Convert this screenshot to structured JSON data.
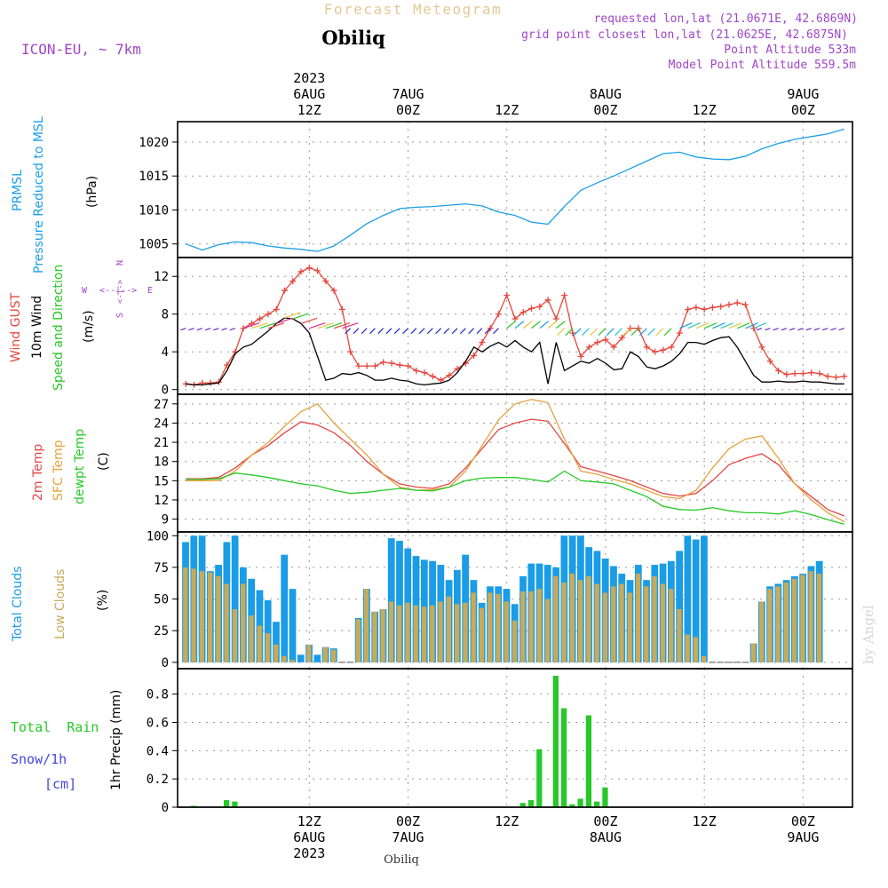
{
  "header": {
    "title": "Forecast Meteogram",
    "location": "Obiliq",
    "model": "ICON-EU, ~ 7km",
    "requested": "requested lon,lat (21.0671E, 42.6869N)",
    "grid_point": "grid point closest lon,lat (21.0625E, 42.6875N)",
    "point_altitude": "Point Altitude 533m",
    "model_altitude": "Model Point Altitude 559.5m",
    "footer_location": "Obiliq",
    "watermark": "by Angel"
  },
  "time_axis": {
    "top_labels": [
      {
        "t": 0,
        "lines": [
          "2023",
          "6AUG",
          "12Z"
        ]
      },
      {
        "t": 12,
        "lines": [
          "7AUG",
          "00Z"
        ]
      },
      {
        "t": 24,
        "lines": [
          "12Z"
        ]
      },
      {
        "t": 36,
        "lines": [
          "8AUG",
          "00Z"
        ]
      },
      {
        "t": 48,
        "lines": [
          "12Z"
        ]
      },
      {
        "t": 60,
        "lines": [
          "9AUG",
          "00Z"
        ]
      }
    ],
    "bottom_labels": [
      {
        "t": 0,
        "lines": [
          "12Z",
          "6AUG",
          "2023"
        ]
      },
      {
        "t": 12,
        "lines": [
          "00Z",
          "7AUG"
        ]
      },
      {
        "t": 24,
        "lines": [
          "12Z"
        ]
      },
      {
        "t": 36,
        "lines": [
          "00Z",
          "8AUG"
        ]
      },
      {
        "t": 48,
        "lines": [
          "12Z"
        ]
      },
      {
        "t": 60,
        "lines": [
          "00Z",
          "9AUG"
        ]
      }
    ]
  },
  "panels": {
    "pressure": {
      "label1": "PRMSL",
      "label2": "Pressure Reduced to MSL",
      "unit": "(hPa)"
    },
    "wind": {
      "label_gust": "Wind GUST",
      "label_wind": "10m Wind",
      "label_dir": "Speed and Direction",
      "unit": "(m/s)",
      "compass": {
        "n": "N",
        "s": "S",
        "e": "E",
        "w": "W"
      }
    },
    "temp": {
      "label_t2m": "2m Temp",
      "label_sfc": "SFC Temp",
      "label_dew": "dewpt Temp",
      "unit": "(C)"
    },
    "clouds": {
      "label_total": "Total Clouds",
      "label_low": "Low Clouds",
      "unit": "(%)"
    },
    "precip": {
      "label_rain": "Total  Rain",
      "label_snow": "Snow/1h",
      "label_cm": "[cm]",
      "label_axis": "1hr Precip (mm)"
    }
  },
  "colors": {
    "pressure": "#1aa0e6",
    "gust": "#e6463c",
    "wind": "#000000",
    "t2m": "#e64646",
    "sfc": "#e6a23c",
    "dew": "#28c828",
    "total_clouds": "#1a9ce6",
    "low_clouds": "#c8aa5a",
    "rain": "#28c828",
    "title": "#e6c896",
    "meta": "#a046c8"
  },
  "chart_data": [
    {
      "type": "line",
      "name": "pressure",
      "x_unit": "hours from 6AUG 12Z",
      "ylim": [
        1003,
        1023
      ],
      "yticks": [
        1005,
        1010,
        1015,
        1020
      ],
      "series": [
        {
          "name": "PRMSL",
          "x": [
            -15,
            -13,
            -11,
            -9,
            -7,
            -5,
            -3,
            -1,
            1,
            3,
            5,
            7,
            9,
            11,
            13,
            15,
            17,
            19,
            21,
            23,
            25,
            27,
            29,
            31,
            33,
            35,
            37,
            39,
            41,
            43,
            45,
            47,
            49,
            51,
            53,
            55,
            57,
            59,
            61,
            63,
            65
          ],
          "y": [
            1005.0,
            1004.1,
            1004.9,
            1005.3,
            1005.2,
            1004.7,
            1004.4,
            1004.2,
            1003.9,
            1004.7,
            1006.3,
            1008.0,
            1009.2,
            1010.2,
            1010.4,
            1010.5,
            1010.7,
            1010.9,
            1010.6,
            1009.7,
            1009.2,
            1008.2,
            1007.9,
            1010.5,
            1012.9,
            1014.0,
            1015.0,
            1016.1,
            1017.2,
            1018.3,
            1018.5,
            1017.8,
            1017.5,
            1017.4,
            1017.9,
            1019.0,
            1019.8,
            1020.4,
            1020.8,
            1021.2,
            1021.9
          ]
        }
      ]
    },
    {
      "type": "line",
      "name": "wind",
      "ylim": [
        -0.5,
        14
      ],
      "yticks": [
        0,
        4,
        8,
        12
      ],
      "series": [
        {
          "name": "Wind GUST",
          "x": [
            -15,
            -14,
            -13,
            -12,
            -11,
            -10,
            -9,
            -8,
            -7,
            -6,
            -5,
            -4,
            -3,
            -2,
            -1,
            0,
            1,
            2,
            3,
            4,
            5,
            6,
            7,
            8,
            9,
            10,
            11,
            12,
            13,
            14,
            15,
            16,
            17,
            18,
            19,
            20,
            21,
            22,
            23,
            24,
            25,
            26,
            27,
            28,
            29,
            30,
            31,
            32,
            33,
            34,
            35,
            36,
            37,
            38,
            39,
            40,
            41,
            42,
            43,
            44,
            45,
            46,
            47,
            48,
            49,
            50,
            51,
            52,
            53,
            54,
            55,
            56,
            57,
            58,
            59,
            60,
            61,
            62,
            63,
            64,
            65
          ],
          "y": [
            0.6,
            0.5,
            0.7,
            0.7,
            0.8,
            2.6,
            4.0,
            6.5,
            7.0,
            7.5,
            8.0,
            8.5,
            10.5,
            11.5,
            12.5,
            12.9,
            12.6,
            11.5,
            10.5,
            8.5,
            4.0,
            2.5,
            2.5,
            2.5,
            2.9,
            2.8,
            2.6,
            2.5,
            2.0,
            1.8,
            1.4,
            1.0,
            1.5,
            2.2,
            2.8,
            3.6,
            5.0,
            6.5,
            8.0,
            10.0,
            7.5,
            8.2,
            8.6,
            8.8,
            9.5,
            7.5,
            10.0,
            6.0,
            3.5,
            4.5,
            5.0,
            5.3,
            4.5,
            5.5,
            6.5,
            6.5,
            4.5,
            4.0,
            4.2,
            4.5,
            6.0,
            8.5,
            8.7,
            8.5,
            8.7,
            8.8,
            9.0,
            9.2,
            9.0,
            6.5,
            4.5,
            3.0,
            2.0,
            1.6,
            1.7,
            1.7,
            1.8,
            1.7,
            1.4,
            1.3,
            1.4
          ]
        },
        {
          "name": "10m Wind",
          "x": [
            -15,
            -14,
            -13,
            -12,
            -11,
            -10,
            -9,
            -8,
            -7,
            -6,
            -5,
            -4,
            -3,
            -2,
            -1,
            0,
            1,
            2,
            3,
            4,
            5,
            6,
            7,
            8,
            9,
            10,
            11,
            12,
            13,
            14,
            15,
            16,
            17,
            18,
            19,
            20,
            21,
            22,
            23,
            24,
            25,
            26,
            27,
            28,
            29,
            30,
            31,
            32,
            33,
            34,
            35,
            36,
            37,
            38,
            39,
            40,
            41,
            42,
            43,
            44,
            45,
            46,
            47,
            48,
            49,
            50,
            51,
            52,
            53,
            54,
            55,
            56,
            57,
            58,
            59,
            60,
            61,
            62,
            63,
            64,
            65
          ],
          "y": [
            0.6,
            0.5,
            0.5,
            0.6,
            0.7,
            2.0,
            3.8,
            4.5,
            4.8,
            5.5,
            6.2,
            7.0,
            7.6,
            7.5,
            7.0,
            6.0,
            3.5,
            1.0,
            1.2,
            1.7,
            1.6,
            1.8,
            1.5,
            1.0,
            1.0,
            1.2,
            1.0,
            0.9,
            0.6,
            0.5,
            0.6,
            0.7,
            1.0,
            1.8,
            3.0,
            4.5,
            4.0,
            4.6,
            5.0,
            4.5,
            5.2,
            4.5,
            4.0,
            5.0,
            0.6,
            5.0,
            2.0,
            2.5,
            3.0,
            2.8,
            3.3,
            2.8,
            2.1,
            2.2,
            4.0,
            3.5,
            2.4,
            2.2,
            2.5,
            3.0,
            3.8,
            5.0,
            5.0,
            4.8,
            5.2,
            5.5,
            5.6,
            4.5,
            3.0,
            1.5,
            0.8,
            0.8,
            0.9,
            0.8,
            0.8,
            0.9,
            0.8,
            0.8,
            0.7,
            0.6,
            0.6
          ]
        }
      ]
    },
    {
      "type": "line",
      "name": "temperature",
      "ylim": [
        7,
        28.5
      ],
      "yticks": [
        9,
        12,
        15,
        18,
        21,
        24,
        27
      ],
      "series": [
        {
          "name": "2m Temp",
          "x": [
            -15,
            -13,
            -11,
            -9,
            -7,
            -5,
            -3,
            -1,
            1,
            3,
            5,
            7,
            9,
            11,
            13,
            15,
            17,
            19,
            21,
            23,
            25,
            27,
            29,
            31,
            33,
            35,
            37,
            39,
            41,
            43,
            45,
            47,
            49,
            51,
            53,
            55,
            57,
            59,
            61,
            63,
            65
          ],
          "y": [
            15.3,
            15.3,
            15.5,
            17.0,
            19.0,
            20.5,
            22.5,
            24.2,
            23.7,
            22.5,
            20.5,
            18.0,
            16.0,
            14.5,
            14.0,
            13.8,
            14.5,
            17.0,
            20.0,
            23.0,
            24.0,
            24.6,
            24.3,
            20.8,
            17.2,
            16.5,
            15.8,
            15.0,
            14.0,
            13.0,
            12.6,
            13.0,
            15.0,
            17.5,
            18.5,
            19.2,
            17.5,
            14.5,
            12.5,
            10.5,
            9.5
          ]
        },
        {
          "name": "SFC Temp",
          "x": [
            -15,
            -13,
            -11,
            -9,
            -7,
            -5,
            -3,
            -1,
            1,
            3,
            5,
            7,
            9,
            11,
            13,
            15,
            17,
            19,
            21,
            23,
            25,
            27,
            29,
            31,
            33,
            35,
            37,
            39,
            41,
            43,
            45,
            47,
            49,
            51,
            53,
            55,
            57,
            59,
            61,
            63,
            65
          ],
          "y": [
            15.0,
            15.0,
            15.0,
            16.5,
            19.0,
            21.0,
            23.5,
            25.8,
            27.0,
            24.0,
            21.5,
            19.0,
            16.0,
            14.0,
            13.5,
            13.6,
            14.0,
            16.5,
            20.5,
            24.5,
            27.0,
            27.7,
            27.2,
            21.5,
            16.5,
            16.0,
            15.2,
            14.5,
            13.5,
            12.5,
            12.2,
            13.5,
            17.0,
            20.0,
            21.5,
            22.0,
            18.5,
            14.5,
            12.0,
            10.0,
            8.6
          ]
        },
        {
          "name": "dewpt Temp",
          "x": [
            -15,
            -13,
            -11,
            -9,
            -7,
            -5,
            -3,
            -1,
            1,
            3,
            5,
            7,
            9,
            11,
            13,
            15,
            17,
            19,
            21,
            23,
            25,
            27,
            29,
            31,
            33,
            35,
            37,
            39,
            41,
            43,
            45,
            47,
            49,
            51,
            53,
            55,
            57,
            59,
            61,
            63,
            65
          ],
          "y": [
            15.2,
            15.2,
            15.3,
            16.2,
            15.9,
            15.5,
            15.0,
            14.5,
            14.2,
            13.5,
            13.0,
            13.2,
            13.5,
            13.8,
            13.5,
            13.4,
            14.0,
            15.0,
            15.4,
            15.5,
            15.5,
            15.2,
            14.8,
            16.5,
            15.0,
            14.8,
            14.5,
            13.5,
            12.5,
            11.0,
            10.5,
            10.4,
            10.8,
            10.3,
            10.0,
            10.0,
            9.8,
            10.3,
            9.7,
            8.9,
            8.2
          ]
        }
      ]
    },
    {
      "type": "bar",
      "name": "clouds",
      "ylim": [
        -5,
        103
      ],
      "yticks": [
        0,
        25,
        50,
        75,
        100
      ],
      "start_x": -15,
      "series": [
        {
          "name": "Total Clouds",
          "values": [
            95,
            100,
            100,
            72,
            77,
            95,
            100,
            75,
            66,
            57,
            49,
            32,
            85,
            58,
            6,
            14,
            6,
            12,
            11,
            0,
            0,
            35,
            58,
            40,
            42,
            98,
            96,
            90,
            84,
            81,
            80,
            77,
            65,
            73,
            85,
            65,
            47,
            60,
            60,
            58,
            46,
            68,
            78,
            78,
            77,
            75,
            100,
            100,
            100,
            91,
            88,
            82,
            76,
            70,
            65,
            77,
            65,
            77,
            78,
            80,
            88,
            100,
            97,
            100,
            0,
            0,
            0,
            0,
            0,
            15,
            48,
            60,
            62,
            65,
            68,
            70,
            76,
            80
          ]
        },
        {
          "name": "Low Clouds",
          "values": [
            75,
            74,
            72,
            71,
            68,
            62,
            42,
            62,
            37,
            29,
            23,
            14,
            5,
            2,
            0,
            14,
            0,
            12,
            10,
            0,
            0,
            34,
            58,
            40,
            42,
            48,
            45,
            47,
            45,
            44,
            45,
            48,
            52,
            46,
            47,
            55,
            43,
            55,
            54,
            48,
            33,
            56,
            56,
            58,
            50,
            68,
            63,
            70,
            65,
            68,
            62,
            55,
            60,
            62,
            55,
            70,
            60,
            68,
            62,
            58,
            42,
            22,
            20,
            5,
            0,
            0,
            0,
            0,
            0,
            15,
            48,
            58,
            60,
            63,
            66,
            69,
            72,
            70
          ]
        }
      ]
    },
    {
      "type": "bar",
      "name": "precipitation",
      "ylim": [
        0,
        0.98
      ],
      "yticks": [
        0,
        0.2,
        0.4,
        0.6,
        0.8
      ],
      "series": [
        {
          "name": "1hr Precip",
          "x": [
            -14,
            -10,
            -9,
            13,
            26,
            27,
            28,
            29,
            30,
            31,
            32,
            33,
            34,
            35,
            36
          ],
          "y": [
            0.01,
            0.05,
            0.04,
            0.0,
            0.03,
            0.05,
            0.41,
            0.0,
            0.93,
            0.7,
            0.02,
            0.06,
            0.65,
            0.04,
            0.14
          ]
        }
      ]
    }
  ]
}
